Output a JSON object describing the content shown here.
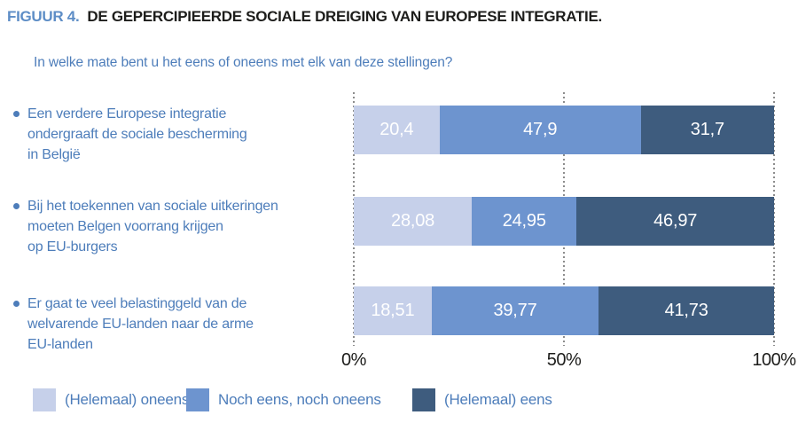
{
  "figure": {
    "label": "FIGUUR 4.",
    "title": "DE GEPERCIPIEERDE SOCIALE DREIGING VAN EUROPESE INTEGRATIE."
  },
  "question": "In welke mate bent u het eens of oneens met elk van deze stellingen?",
  "chart_data": {
    "type": "bar",
    "variant": "horizontal-stacked-100pct",
    "title": "De gepercipieerde sociale dreiging van Europese integratie",
    "categories": [
      "Een verdere Europese integratie\nondergraaft de sociale bescherming\nin België",
      "Bij het toekennen van sociale uitkeringen\nmoeten Belgen voorrang krijgen\nop EU-burgers",
      "Er gaat te veel belastinggeld van de\nwelvarende EU-landen naar de arme\nEU-landen"
    ],
    "series": [
      {
        "name": "(Helemaal) oneens",
        "color": "#c6d0ea",
        "values": [
          20.4,
          28.08,
          18.51
        ],
        "value_labels": [
          "20,4",
          "28,08",
          "18,51"
        ]
      },
      {
        "name": "Noch eens, noch oneens",
        "color": "#6d94cf",
        "values": [
          47.9,
          24.95,
          39.77
        ],
        "value_labels": [
          "47,9",
          "24,95",
          "39,77"
        ]
      },
      {
        "name": "(Helemaal) eens",
        "color": "#3e5c7e",
        "values": [
          31.7,
          46.97,
          41.73
        ],
        "value_labels": [
          "31,7",
          "46,97",
          "41,73"
        ]
      }
    ],
    "x_axis": {
      "ticks": [
        "0%",
        "50%",
        "100%"
      ],
      "range": [
        0,
        100
      ]
    },
    "grid": "vertical-dotted",
    "legend_position": "bottom",
    "value_label_color": "#ffffff"
  },
  "colors": {
    "figure_label_blue": "#5d8dc6",
    "title_text": "#1d1d1b",
    "body_blue": "#4d7dba",
    "gridline_gray": "#8c8c8c"
  }
}
